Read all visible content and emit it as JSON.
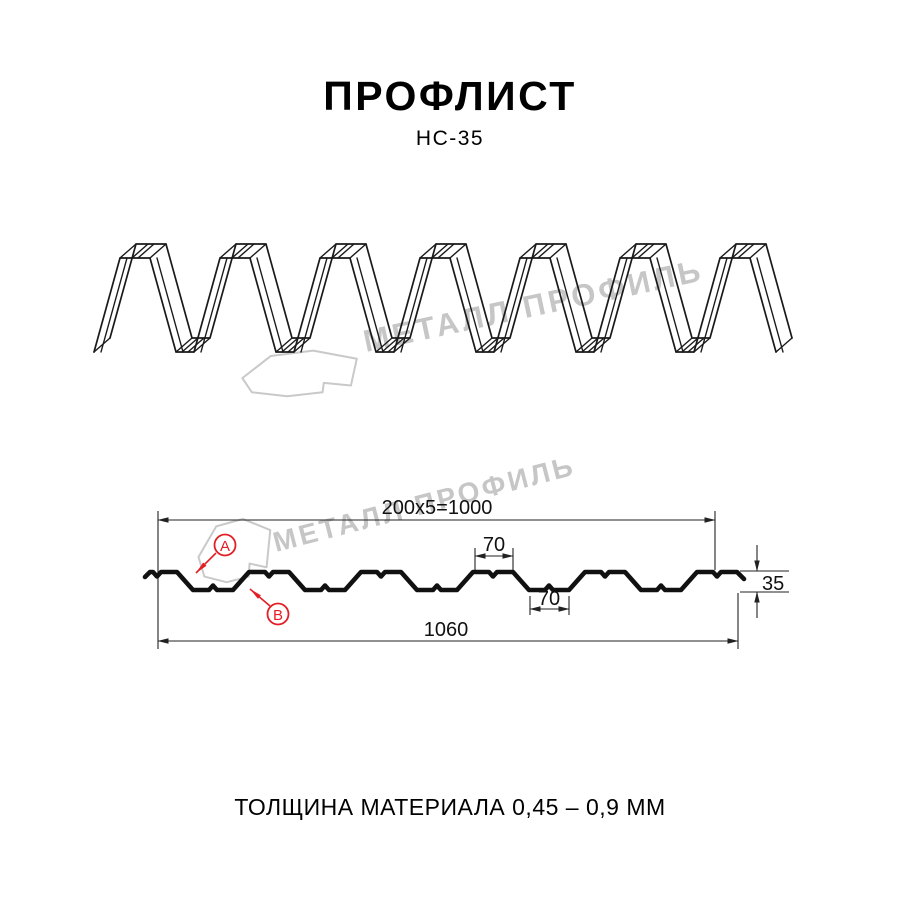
{
  "header": {
    "title": "ПРОФЛИСТ",
    "subtitle": "НС-35"
  },
  "watermark": {
    "brand": "МЕТАЛЛ ПРОФИЛЬ"
  },
  "cross_section": {
    "dim_top_pitch": "200x5=1000",
    "dim_rib_top": "70",
    "dim_rib_bottom": "70",
    "dim_total_width": "1060",
    "dim_height": "35",
    "label_a": "A",
    "label_b": "B"
  },
  "footer": {
    "material_thickness": "ТОЛЩИНА МАТЕРИАЛА 0,45 – 0,9 ММ"
  },
  "colors": {
    "accent_red": "#e31e24",
    "line": "#1a1a1a",
    "watermark_gray": "#c6c6c6"
  }
}
